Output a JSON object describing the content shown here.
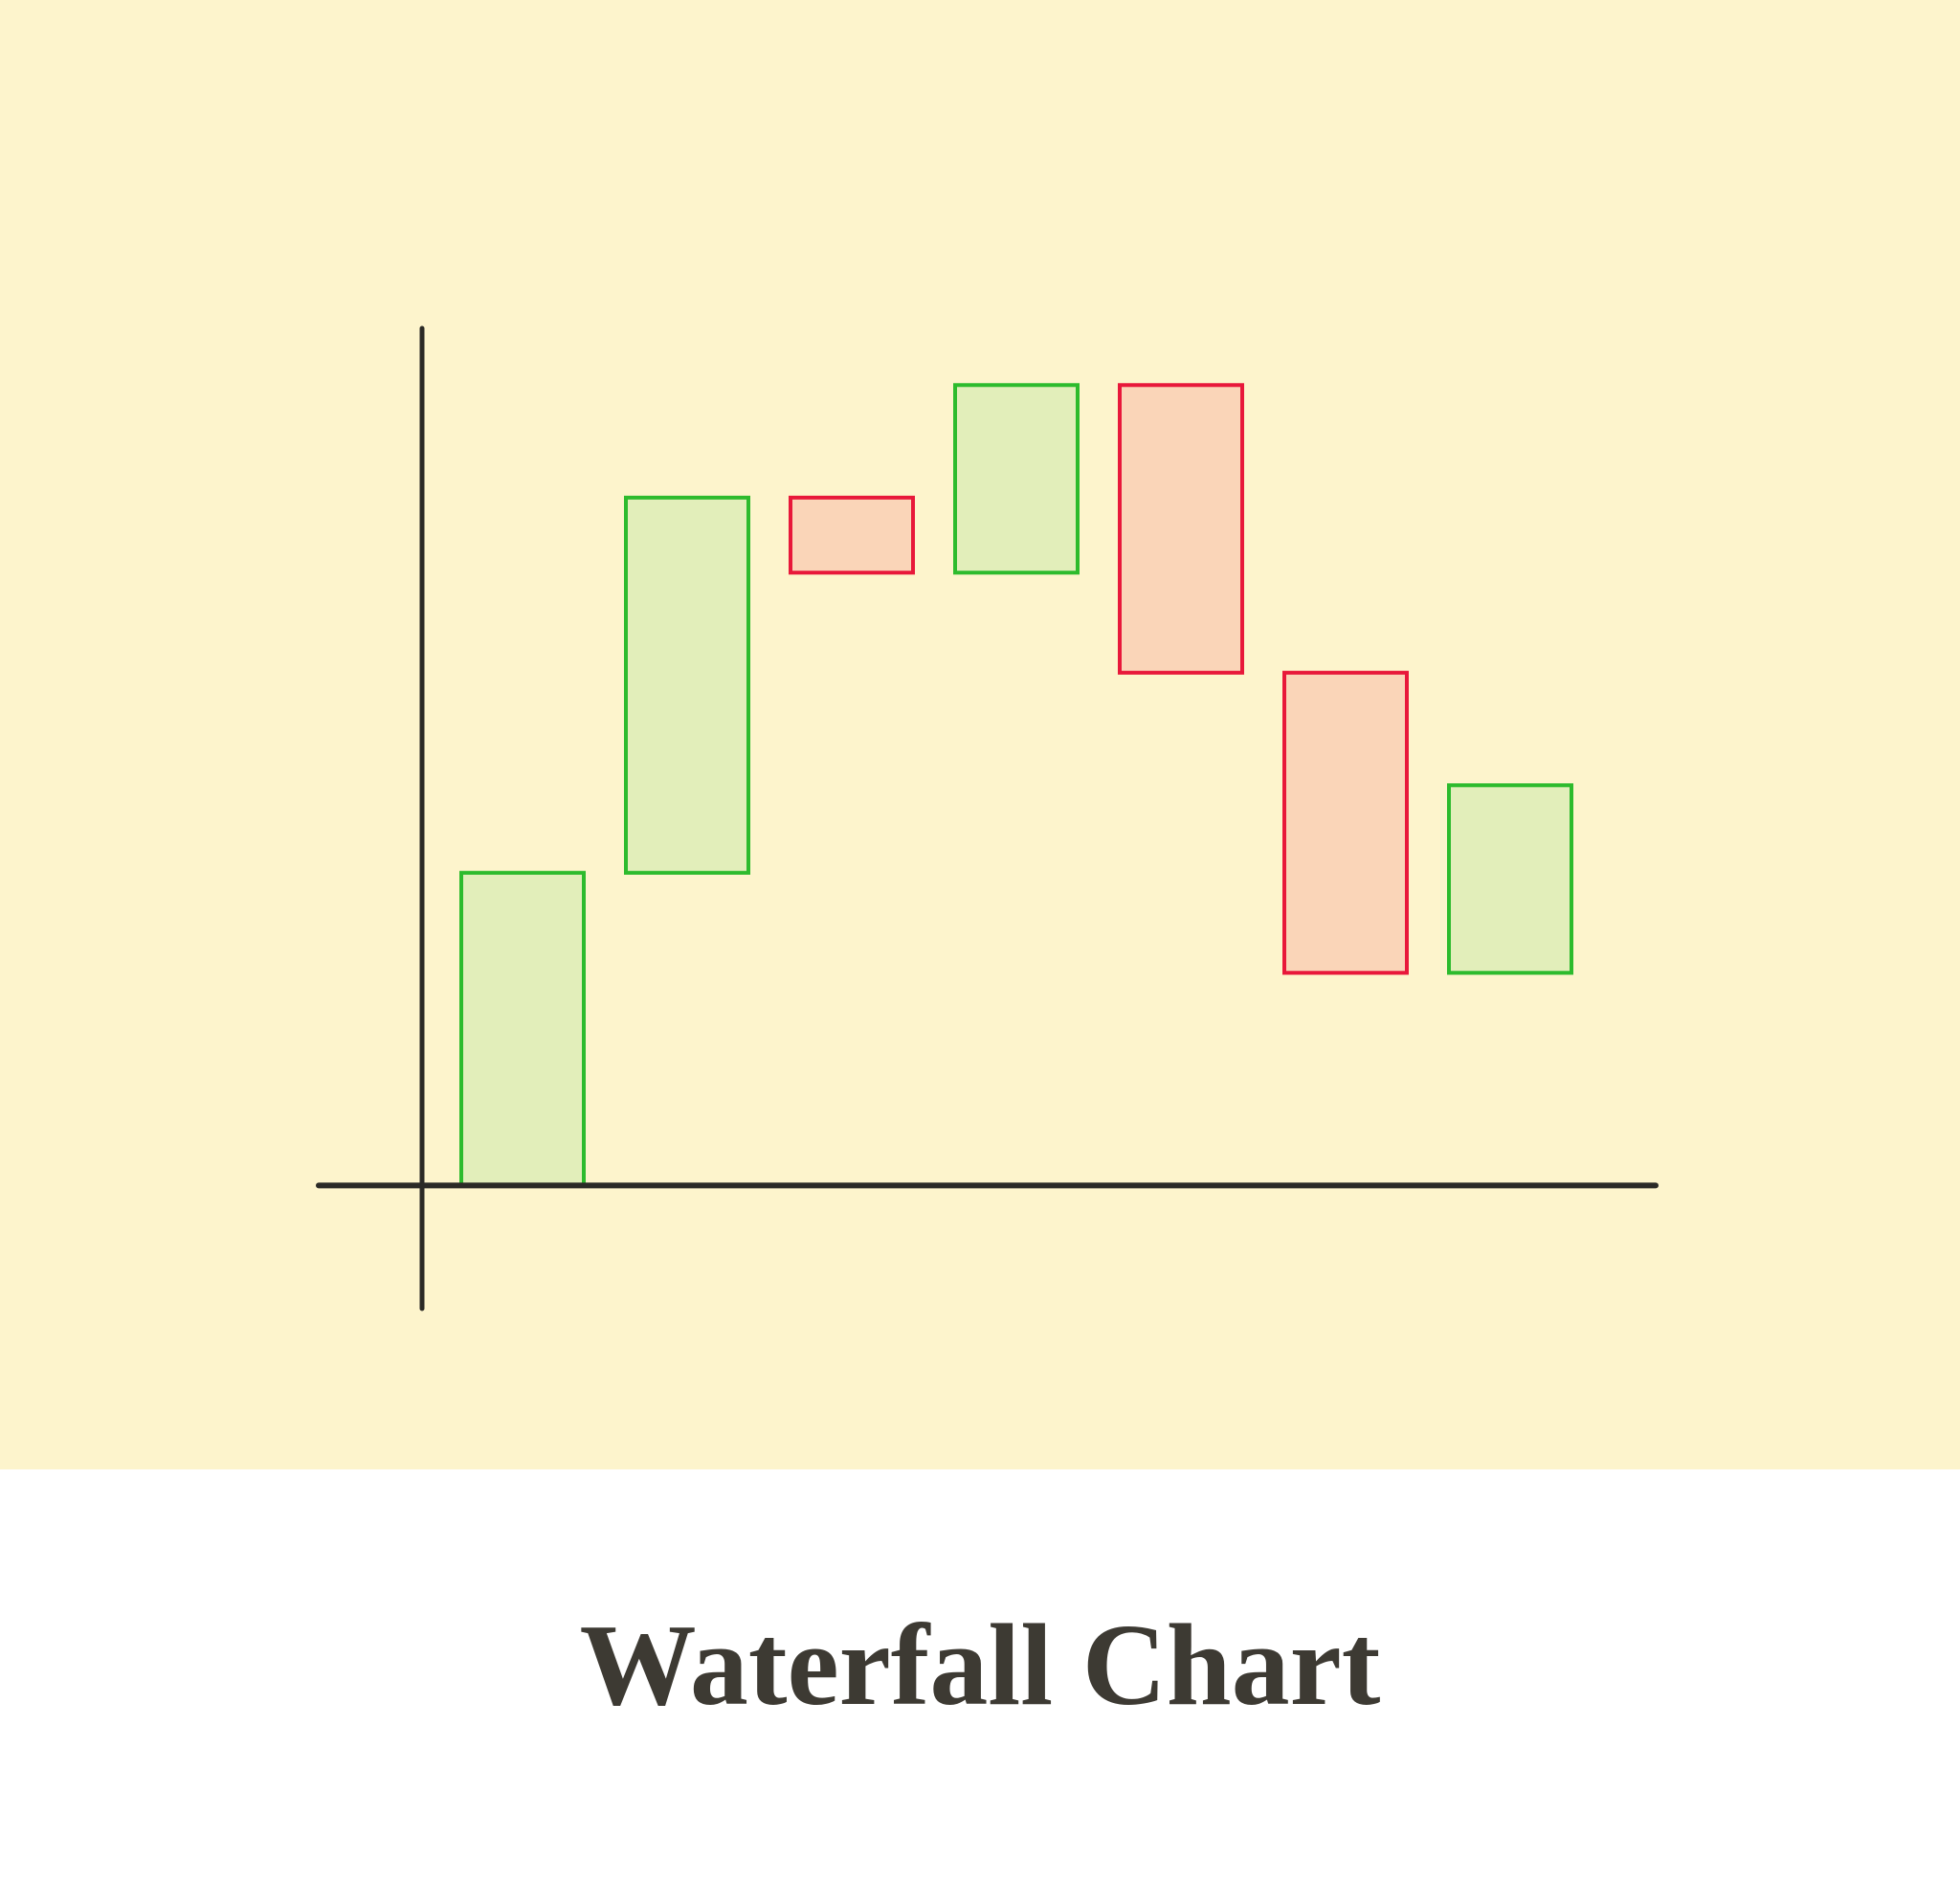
{
  "chart_data": {
    "type": "waterfall",
    "title": "Waterfall Chart",
    "values": [
      25,
      30,
      -6,
      15,
      -23,
      -24,
      15
    ],
    "increase_color": "#2dbb2d",
    "increase_fill": "#e2eeba",
    "decrease_color": "#e8183a",
    "decrease_fill": "#fad5b8",
    "ylim": [
      -10,
      68
    ]
  }
}
